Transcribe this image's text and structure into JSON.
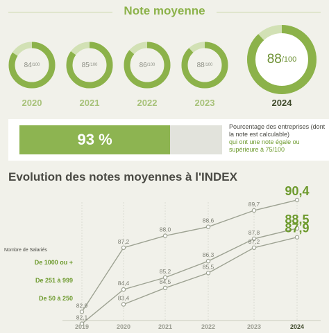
{
  "header": {
    "title": "Note moyenne"
  },
  "donuts": [
    {
      "year": "2020",
      "score": "84",
      "denom": "/100",
      "fraction": 0.84
    },
    {
      "year": "2021",
      "score": "85",
      "denom": "/100",
      "fraction": 0.85
    },
    {
      "year": "2022",
      "score": "86",
      "denom": "/100",
      "fraction": 0.86
    },
    {
      "year": "2023",
      "score": "88",
      "denom": "/100",
      "fraction": 0.88
    },
    {
      "year": "2024",
      "score": "88",
      "denom": "/100",
      "fraction": 0.88
    }
  ],
  "percent_bar": {
    "value_label": "93 %",
    "fraction": 0.93,
    "desc_line1": "Pourcentage des entreprises (dont la note est calculable)",
    "desc_line2": "qui ont une note égale ou supérieure à 75/100"
  },
  "colors": {
    "accent": "#8cb24a",
    "accent_light": "#d2e1b5",
    "line": "#9da292",
    "strong": "#6d9a2d"
  },
  "chart_data": {
    "type": "line",
    "title": "Evolution des notes moyennes à l'INDEX",
    "legend_title": "Nombre de Salariés",
    "categories": [
      "2019",
      "2020",
      "2021",
      "2022",
      "2023",
      "2024"
    ],
    "ylim": [
      82.5,
      91
    ],
    "series": [
      {
        "name": "De 1000 ou +",
        "values": [
          82.9,
          87.2,
          88.0,
          88.6,
          89.7,
          90.4
        ],
        "labels": [
          "82,9",
          "87,2",
          "88,0",
          "88,6",
          "89,7",
          "90,4"
        ]
      },
      {
        "name": "De 251 à 999",
        "values": [
          82.1,
          84.4,
          85.2,
          86.3,
          87.8,
          88.5
        ],
        "labels": [
          "82,1",
          "84,4",
          "85,2",
          "86,3",
          "87,8",
          "88,5"
        ]
      },
      {
        "name": "De 50 à 250",
        "values": [
          null,
          83.4,
          84.5,
          85.5,
          87.2,
          87.9
        ],
        "labels": [
          null,
          "83,4",
          "84,5",
          "85,5",
          "87,2",
          "87,9"
        ]
      }
    ]
  }
}
